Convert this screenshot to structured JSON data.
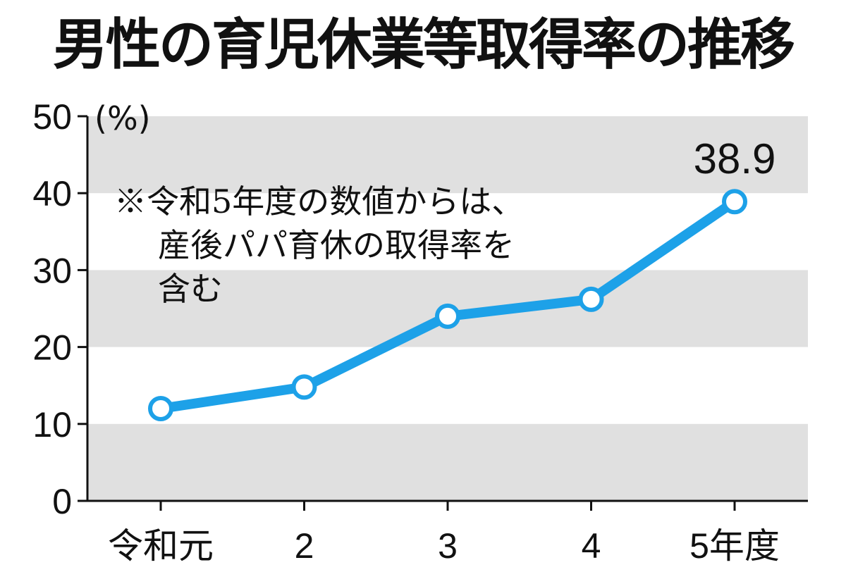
{
  "chart_data": {
    "type": "line",
    "title": "男性の育児休業等取得率の推移",
    "ylabel": "(%)",
    "xlabel": "",
    "categories": [
      "令和元",
      "2",
      "3",
      "4",
      "5年度"
    ],
    "values": [
      12.0,
      14.8,
      24.0,
      26.2,
      38.9
    ],
    "yticks": [
      0,
      10,
      20,
      30,
      40,
      50
    ],
    "ylim": [
      0,
      50
    ],
    "grid": "alternating horizontal gray bands",
    "annotation_lines": [
      "※令和5年度の数値からは、",
      "産後パパ育休の取得率を",
      "含む"
    ],
    "data_labels": [
      {
        "index": 4,
        "text": "38.9"
      }
    ],
    "colors": {
      "line": "#1da1e8",
      "marker_fill": "#ffffff",
      "band": "#e0e0e0",
      "axis": "#111111"
    }
  }
}
